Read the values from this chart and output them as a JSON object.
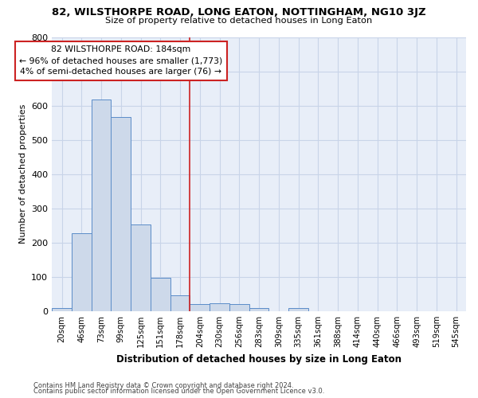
{
  "title": "82, WILSTHORPE ROAD, LONG EATON, NOTTINGHAM, NG10 3JZ",
  "subtitle": "Size of property relative to detached houses in Long Eaton",
  "xlabel": "Distribution of detached houses by size in Long Eaton",
  "ylabel": "Number of detached properties",
  "bar_labels": [
    "20sqm",
    "46sqm",
    "73sqm",
    "99sqm",
    "125sqm",
    "151sqm",
    "178sqm",
    "204sqm",
    "230sqm",
    "256sqm",
    "283sqm",
    "309sqm",
    "335sqm",
    "361sqm",
    "388sqm",
    "414sqm",
    "440sqm",
    "466sqm",
    "493sqm",
    "519sqm",
    "545sqm"
  ],
  "bar_values": [
    10,
    228,
    617,
    566,
    253,
    97,
    47,
    20,
    22,
    20,
    10,
    0,
    10,
    0,
    0,
    0,
    0,
    0,
    0,
    0,
    0
  ],
  "bar_color": "#cdd9ea",
  "bar_edge_color": "#5b8cc8",
  "vline_x": 6.5,
  "annotation_text": "82 WILSTHORPE ROAD: 184sqm\n← 96% of detached houses are smaller (1,773)\n4% of semi-detached houses are larger (76) →",
  "annotation_box_facecolor": "#ffffff",
  "annotation_box_edgecolor": "#cc2222",
  "vline_color": "#cc2222",
  "grid_color": "#c8d4e8",
  "bg_color": "#e8eef8",
  "ylim": [
    0,
    800
  ],
  "yticks": [
    0,
    100,
    200,
    300,
    400,
    500,
    600,
    700,
    800
  ],
  "footer1": "Contains HM Land Registry data © Crown copyright and database right 2024.",
  "footer2": "Contains public sector information licensed under the Open Government Licence v3.0."
}
